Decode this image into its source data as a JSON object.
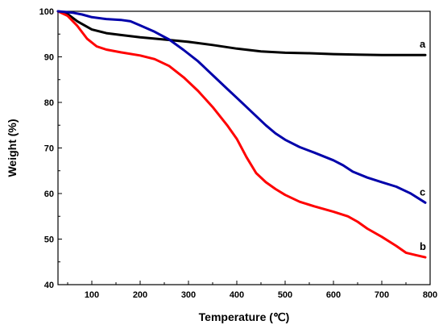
{
  "chart_data": {
    "type": "line",
    "xlabel": "Temperature (℃)",
    "ylabel": "Weight (%)",
    "xlim": [
      30,
      800
    ],
    "ylim": [
      40,
      100
    ],
    "x_ticks": [
      100,
      200,
      300,
      400,
      500,
      600,
      700,
      800
    ],
    "y_ticks": [
      40,
      50,
      60,
      70,
      80,
      90,
      100
    ],
    "grid": false,
    "legend": "none",
    "series": [
      {
        "name": "a",
        "color": "#000000",
        "points": [
          [
            30,
            100
          ],
          [
            50,
            99.4
          ],
          [
            70,
            97.8
          ],
          [
            100,
            96.0
          ],
          [
            130,
            95.2
          ],
          [
            160,
            94.8
          ],
          [
            200,
            94.3
          ],
          [
            250,
            93.8
          ],
          [
            300,
            93.3
          ],
          [
            350,
            92.6
          ],
          [
            400,
            91.8
          ],
          [
            450,
            91.2
          ],
          [
            500,
            90.9
          ],
          [
            550,
            90.8
          ],
          [
            600,
            90.6
          ],
          [
            650,
            90.5
          ],
          [
            700,
            90.4
          ],
          [
            750,
            90.4
          ],
          [
            790,
            90.4
          ]
        ]
      },
      {
        "name": "b",
        "color": "#ff0000",
        "points": [
          [
            30,
            100
          ],
          [
            50,
            99.0
          ],
          [
            70,
            96.8
          ],
          [
            90,
            94.0
          ],
          [
            110,
            92.3
          ],
          [
            130,
            91.6
          ],
          [
            160,
            91.0
          ],
          [
            200,
            90.3
          ],
          [
            230,
            89.5
          ],
          [
            260,
            88.0
          ],
          [
            290,
            85.5
          ],
          [
            320,
            82.5
          ],
          [
            350,
            79.0
          ],
          [
            380,
            75.0
          ],
          [
            400,
            72.0
          ],
          [
            420,
            68.0
          ],
          [
            440,
            64.5
          ],
          [
            460,
            62.5
          ],
          [
            480,
            61.0
          ],
          [
            500,
            59.7
          ],
          [
            530,
            58.2
          ],
          [
            560,
            57.2
          ],
          [
            600,
            56.0
          ],
          [
            630,
            55.0
          ],
          [
            650,
            53.8
          ],
          [
            670,
            52.3
          ],
          [
            700,
            50.5
          ],
          [
            730,
            48.5
          ],
          [
            750,
            47.0
          ],
          [
            770,
            46.5
          ],
          [
            790,
            46.0
          ]
        ]
      },
      {
        "name": "c",
        "color": "#0000aa",
        "points": [
          [
            30,
            100
          ],
          [
            60,
            99.7
          ],
          [
            80,
            99.3
          ],
          [
            100,
            98.7
          ],
          [
            130,
            98.3
          ],
          [
            160,
            98.1
          ],
          [
            180,
            97.8
          ],
          [
            200,
            96.9
          ],
          [
            230,
            95.5
          ],
          [
            260,
            93.8
          ],
          [
            290,
            91.5
          ],
          [
            320,
            89.0
          ],
          [
            350,
            86.0
          ],
          [
            380,
            83.0
          ],
          [
            400,
            81.0
          ],
          [
            430,
            78.0
          ],
          [
            460,
            75.0
          ],
          [
            480,
            73.2
          ],
          [
            500,
            71.8
          ],
          [
            530,
            70.2
          ],
          [
            560,
            69.0
          ],
          [
            600,
            67.3
          ],
          [
            620,
            66.2
          ],
          [
            640,
            64.8
          ],
          [
            670,
            63.5
          ],
          [
            700,
            62.5
          ],
          [
            730,
            61.5
          ],
          [
            760,
            60.0
          ],
          [
            790,
            58.0
          ]
        ]
      }
    ]
  }
}
